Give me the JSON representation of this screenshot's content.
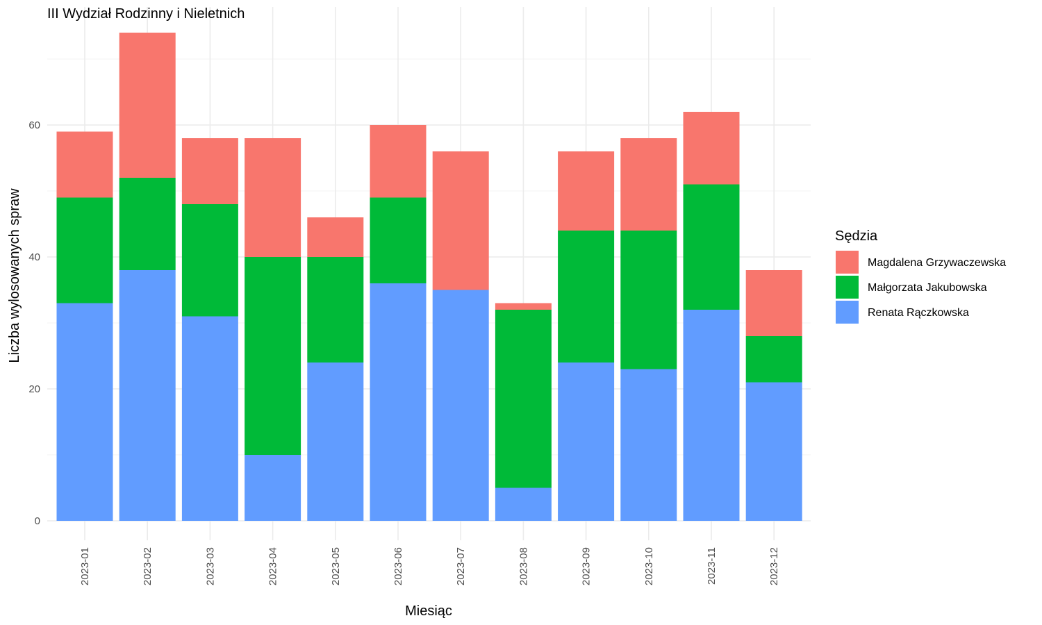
{
  "chart_data": {
    "type": "bar",
    "stacked": true,
    "title": "III Wydział Rodzinny i Nieletnich",
    "xlabel": "Miesiąc",
    "ylabel": "Liczba wylosowanych spraw",
    "ylim": [
      0,
      76
    ],
    "yticks": [
      0,
      20,
      40,
      60
    ],
    "grid": true,
    "legend_title": "Sędzia",
    "legend_position": "right",
    "categories": [
      "2023-01",
      "2023-02",
      "2023-03",
      "2023-04",
      "2023-05",
      "2023-06",
      "2023-07",
      "2023-08",
      "2023-09",
      "2023-10",
      "2023-11",
      "2023-12"
    ],
    "series": [
      {
        "name": "Renata Rączkowska",
        "color": "#619cff",
        "values": [
          33,
          38,
          31,
          10,
          24,
          36,
          35,
          5,
          24,
          23,
          32,
          21
        ]
      },
      {
        "name": "Małgorzata Jakubowska",
        "color": "#00ba38",
        "values": [
          16,
          14,
          17,
          30,
          16,
          13,
          0,
          27,
          20,
          21,
          19,
          7
        ]
      },
      {
        "name": "Magdalena Grzywaczewska",
        "color": "#f8766d",
        "values": [
          10,
          22,
          10,
          18,
          6,
          11,
          21,
          1,
          12,
          14,
          11,
          10
        ]
      }
    ],
    "legend_order": [
      "Magdalena Grzywaczewska",
      "Małgorzata Jakubowska",
      "Renata Rączkowska"
    ]
  }
}
